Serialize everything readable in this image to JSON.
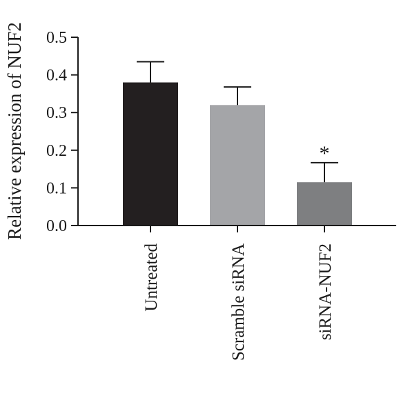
{
  "chart_data": {
    "type": "bar",
    "ylabel": "Relative expression of NUF2",
    "ylim": [
      0,
      0.5
    ],
    "yticks": [
      "0.0",
      "0.1",
      "0.2",
      "0.3",
      "0.4",
      "0.5"
    ],
    "categories": [
      "Untreated",
      "Scramble siRNA",
      "siRNA-NUF2"
    ],
    "values": [
      0.38,
      0.32,
      0.115
    ],
    "error_upper": [
      0.055,
      0.048,
      0.052
    ],
    "significance": [
      "",
      "",
      "*"
    ],
    "colors": [
      "#231f20",
      "#a4a5a8",
      "#7e7f81"
    ],
    "grid": false,
    "legend": "none"
  }
}
